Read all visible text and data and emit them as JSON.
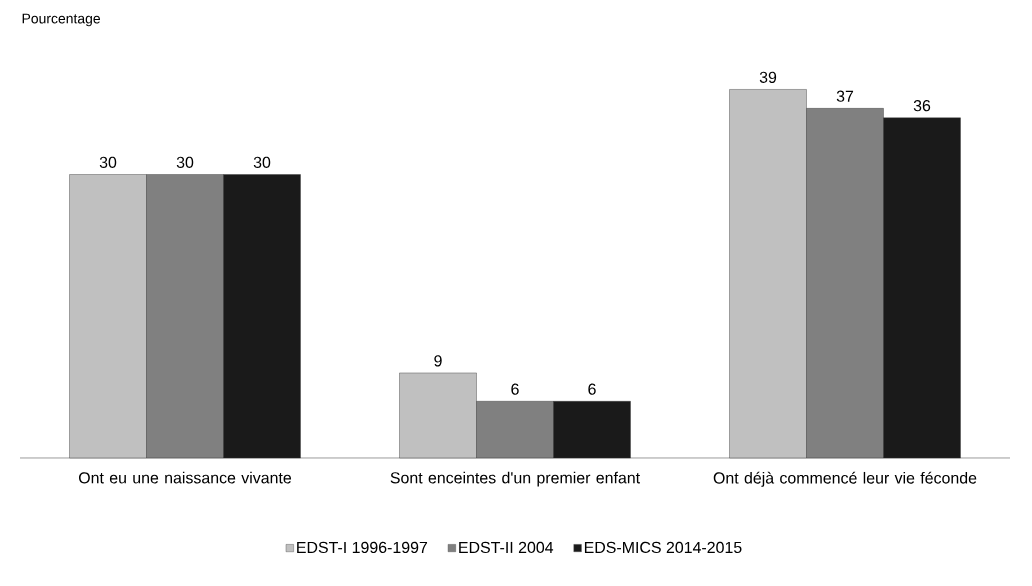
{
  "chart_data": {
    "type": "bar",
    "annotations": [
      "Pourcentage"
    ],
    "categories": [
      "Ont eu une naissance vivante",
      "Sont enceintes d'un premier enfant",
      "Ont déjà commencé leur vie féconde"
    ],
    "series": [
      {
        "name": "EDST-I 1996-1997",
        "color": "#c0c0c0",
        "values": [
          30,
          9,
          39
        ]
      },
      {
        "name": "EDST-II 2004",
        "color": "#808080",
        "values": [
          30,
          6,
          37
        ]
      },
      {
        "name": "EDS-MICS 2014-2015",
        "color": "#1a1a1a",
        "values": [
          30,
          6,
          36
        ]
      }
    ],
    "data_labels": true,
    "legend": "bottom",
    "tick_labels": "x"
  }
}
